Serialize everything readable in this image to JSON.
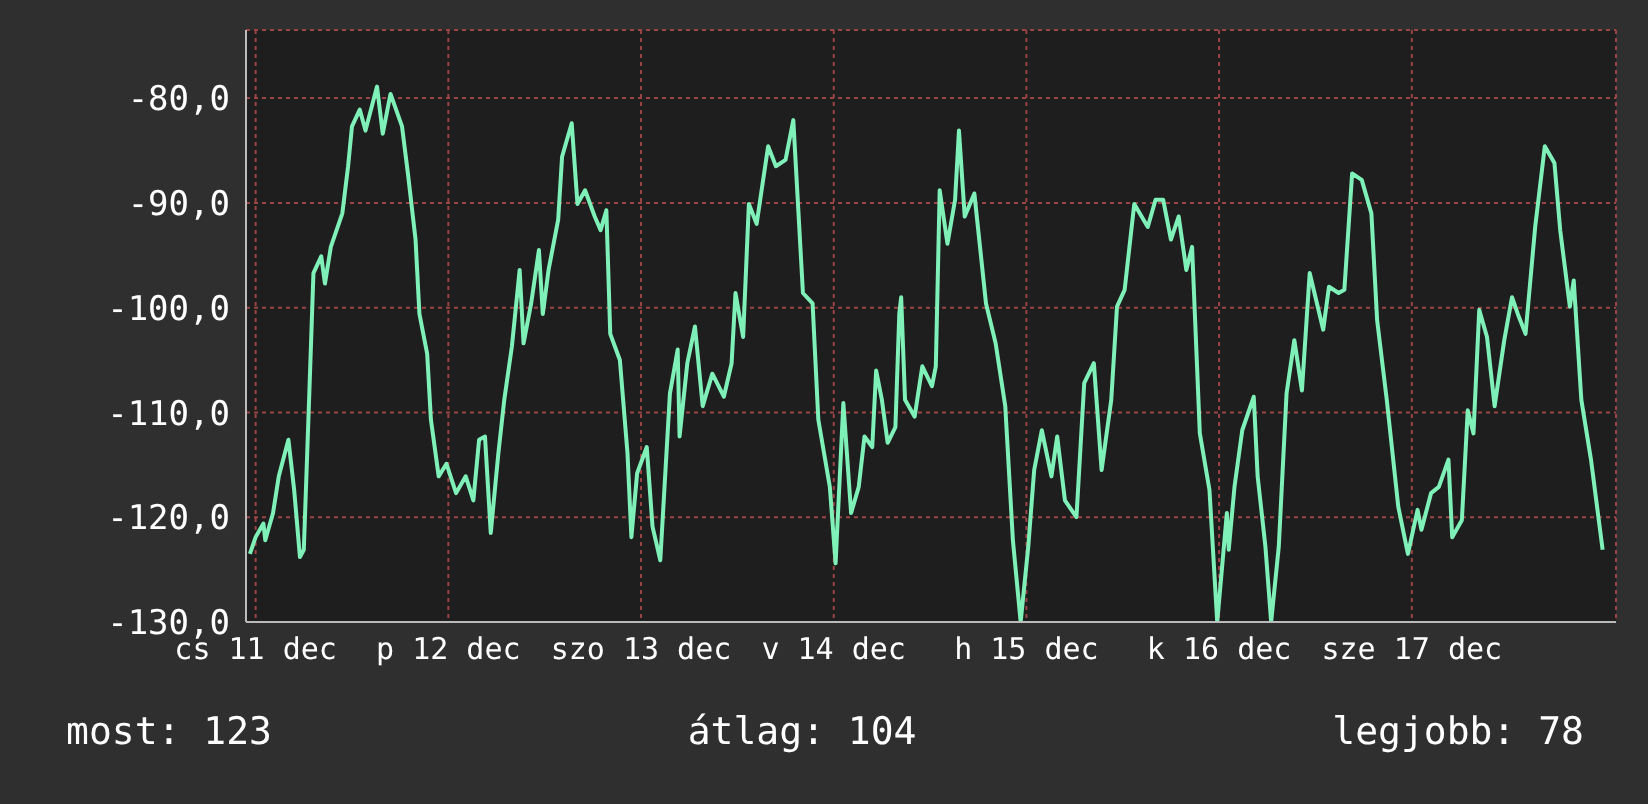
{
  "chart_data": {
    "type": "line",
    "x": [
      "--12-10T23:17",
      "--12-11T00:00",
      "--12-11T00:58",
      "--12-11T01:12",
      "--12-11T02:10",
      "--12-11T02:53",
      "--12-11T04:05",
      "--12-11T04:48",
      "--12-11T05:31",
      "--12-11T06:00",
      "--12-11T06:43",
      "--12-11T07:12",
      "--12-11T08:10",
      "--12-11T08:38",
      "--12-11T09:22",
      "--12-11T10:48",
      "--12-11T11:31",
      "--12-11T12:00",
      "--12-11T12:58",
      "--12-11T13:41",
      "--12-11T15:07",
      "--12-11T15:50",
      "--12-11T16:48",
      "--12-11T18:14",
      "--12-11T18:58",
      "--12-11T19:55",
      "--12-11T20:24",
      "--12-11T21:22",
      "--12-11T21:50",
      "--12-11T22:48",
      "--12-11T23:46",
      "--12-12T00:58",
      "--12-12T02:10",
      "--12-12T03:07",
      "--12-12T03:50",
      "--12-12T04:34",
      "--12-12T05:17",
      "--12-12T06:14",
      "--12-12T06:58",
      "--12-12T07:55",
      "--12-12T08:53",
      "--12-12T09:22",
      "--12-12T10:19",
      "--12-12T11:17",
      "--12-12T11:46",
      "--12-12T12:29",
      "--12-12T13:41",
      "--12-12T14:10",
      "--12-12T15:22",
      "--12-12T16:05",
      "--12-12T17:02",
      "--12-12T18:14",
      "--12-12T18:58",
      "--12-12T19:41",
      "--12-12T20:10",
      "--12-12T21:22",
      "--12-12T22:19",
      "--12-12T22:48",
      "--12-12T23:31",
      "--12-13T00:43",
      "--12-13T01:26",
      "--12-13T02:24",
      "--12-13T03:36",
      "--12-13T04:34",
      "--12-13T04:48",
      "--12-13T05:46",
      "--12-13T06:43",
      "--12-13T07:41",
      "--12-13T08:53",
      "--12-13T10:19",
      "--12-13T11:17",
      "--12-13T11:46",
      "--12-13T12:43",
      "--12-13T13:26",
      "--12-13T14:24",
      "--12-13T15:50",
      "--12-13T16:48",
      "--12-13T18:00",
      "--12-13T18:58",
      "--12-13T20:10",
      "--12-13T21:22",
      "--12-13T22:05",
      "--12-13T23:31",
      "--12-14T00:14",
      "--12-14T01:12",
      "--12-14T02:10",
      "--12-14T03:07",
      "--12-14T03:50",
      "--12-14T04:48",
      "--12-14T05:17",
      "--12-14T06:00",
      "--12-14T06:43",
      "--12-14T07:41",
      "--12-14T08:10",
      "--12-14T08:24",
      "--12-14T08:53",
      "--12-14T10:05",
      "--12-14T11:02",
      "--12-14T12:14",
      "--12-14T12:43",
      "--12-14T13:12",
      "--12-14T14:10",
      "--12-14T15:07",
      "--12-14T15:36",
      "--12-14T16:19",
      "--12-14T17:31",
      "--12-14T18:58",
      "--12-14T20:10",
      "--12-14T21:22",
      "--12-14T22:19",
      "--12-14T23:17",
      "--12-15T00:14",
      "--12-15T00:58",
      "--12-15T01:55",
      "--12-15T03:07",
      "--12-15T03:50",
      "--12-15T04:48",
      "--12-15T06:14",
      "--12-15T07:12",
      "--12-15T08:24",
      "--12-15T09:22",
      "--12-15T10:34",
      "--12-15T11:17",
      "--12-15T12:14",
      "--12-15T13:26",
      "--12-15T15:07",
      "--12-15T16:05",
      "--12-15T17:02",
      "--12-15T18:00",
      "--12-15T18:58",
      "--12-15T19:55",
      "--12-15T20:38",
      "--12-15T21:36",
      "--12-15T22:48",
      "--12-15T23:46",
      "--12-16T00:58",
      "--12-16T01:12",
      "--12-16T01:55",
      "--12-16T02:53",
      "--12-16T04:19",
      "--12-16T04:48",
      "--12-16T05:46",
      "--12-16T06:29",
      "--12-16T07:26",
      "--12-16T08:24",
      "--12-16T09:22",
      "--12-16T10:19",
      "--12-16T11:17",
      "--12-16T12:58",
      "--12-16T13:41",
      "--12-16T14:53",
      "--12-16T15:36",
      "--12-16T16:34",
      "--12-16T17:46",
      "--12-16T18:58",
      "--12-16T19:41",
      "--12-16T20:53",
      "--12-16T22:19",
      "--12-16T23:31",
      "--12-17T00:43",
      "--12-17T01:12",
      "--12-17T02:24",
      "--12-17T03:22",
      "--12-17T04:34",
      "--12-17T05:02",
      "--12-17T06:14",
      "--12-17T06:58",
      "--12-17T07:41",
      "--12-17T08:24",
      "--12-17T09:22",
      "--12-17T10:19",
      "--12-17T11:31",
      "--12-17T12:29",
      "--12-17T13:12",
      "--12-17T14:10",
      "--12-17T15:22",
      "--12-17T16:34",
      "--12-17T17:46",
      "--12-17T18:29",
      "--12-17T19:41",
      "--12-17T20:10",
      "--12-17T21:07",
      "--12-17T22:19",
      "--12-17T23:46"
    ],
    "series": [
      {
        "color": "#7ef0b8",
        "values": [
          -123.5,
          -121.9,
          -120.6,
          -122.2,
          -119.6,
          -116.1,
          -112.6,
          -117.4,
          -123.8,
          -123.1,
          -107.5,
          -96.7,
          -95.1,
          -97.7,
          -94.2,
          -91.0,
          -86.5,
          -82.7,
          -81.1,
          -83.1,
          -78.9,
          -83.4,
          -79.6,
          -82.7,
          -87.2,
          -93.5,
          -100.6,
          -104.4,
          -110.7,
          -116.1,
          -114.9,
          -117.7,
          -116.1,
          -118.4,
          -112.6,
          -112.3,
          -121.5,
          -113.9,
          -108.8,
          -103.7,
          -96.4,
          -103.4,
          -99.6,
          -94.5,
          -100.6,
          -96.4,
          -91.6,
          -85.6,
          -82.4,
          -90.1,
          -88.8,
          -91.3,
          -92.6,
          -90.7,
          -102.5,
          -105.0,
          -113.9,
          -121.9,
          -115.8,
          -113.3,
          -120.9,
          -124.1,
          -108.2,
          -104.0,
          -112.3,
          -105.3,
          -101.8,
          -109.4,
          -106.3,
          -108.5,
          -105.3,
          -98.6,
          -102.8,
          -90.1,
          -92.0,
          -84.6,
          -86.5,
          -85.9,
          -82.1,
          -98.6,
          -99.6,
          -110.7,
          -117.1,
          -124.4,
          -109.1,
          -119.6,
          -117.1,
          -112.3,
          -113.3,
          -106.0,
          -108.8,
          -112.9,
          -111.4,
          -100.6,
          -99.0,
          -108.8,
          -110.4,
          -105.6,
          -107.5,
          -105.6,
          -88.8,
          -93.9,
          -89.7,
          -83.1,
          -91.3,
          -89.1,
          -99.6,
          -103.4,
          -109.4,
          -122.2,
          -130.0,
          -122.8,
          -115.5,
          -111.7,
          -116.1,
          -112.3,
          -118.4,
          -120.0,
          -107.2,
          -105.3,
          -115.5,
          -108.8,
          -99.9,
          -98.3,
          -90.1,
          -92.3,
          -89.7,
          -89.7,
          -93.5,
          -91.3,
          -96.4,
          -94.2,
          -112.0,
          -117.4,
          -130.0,
          -119.6,
          -123.1,
          -117.1,
          -111.7,
          -108.5,
          -116.1,
          -122.8,
          -130.0,
          -122.8,
          -108.2,
          -103.1,
          -107.9,
          -96.7,
          -102.1,
          -98.0,
          -98.6,
          -98.3,
          -87.2,
          -87.8,
          -91.0,
          -101.2,
          -108.8,
          -119.0,
          -123.5,
          -119.3,
          -121.2,
          -117.7,
          -117.1,
          -114.5,
          -121.9,
          -120.3,
          -109.8,
          -112.0,
          -100.2,
          -102.8,
          -109.4,
          -103.1,
          -99.0,
          -100.6,
          -102.5,
          -92.3,
          -84.6,
          -86.2,
          -92.6,
          -99.9,
          -97.4,
          -108.8,
          -114.5,
          -123.1
        ]
      }
    ],
    "xlim": [
      "--12-10T22:48",
      "--12-18T01:26"
    ],
    "xticks": [
      {
        "value": "--12-11",
        "label": "cs 11 dec"
      },
      {
        "value": "--12-12",
        "label": "p 12 dec"
      },
      {
        "value": "--12-13",
        "label": "szo 13 dec"
      },
      {
        "value": "--12-14",
        "label": "v 14 dec"
      },
      {
        "value": "--12-15",
        "label": "h 15 dec"
      },
      {
        "value": "--12-16",
        "label": "k 16 dec"
      },
      {
        "value": "--12-17",
        "label": "sze 17 dec"
      }
    ],
    "ylim": [
      -130,
      -73.5
    ],
    "yticks": [
      {
        "value": -80,
        "label": "-80,0"
      },
      {
        "value": -90,
        "label": "-90,0"
      },
      {
        "value": -100,
        "label": "-100,0"
      },
      {
        "value": -110,
        "label": "-110,0"
      },
      {
        "value": -120,
        "label": "-120,0"
      },
      {
        "value": -130,
        "label": "-130,0"
      }
    ],
    "grid": true,
    "marker": "none",
    "line_style": "solid",
    "annotations": [
      "most: 123",
      "átlag: 104",
      "legjobb: 78"
    ]
  }
}
